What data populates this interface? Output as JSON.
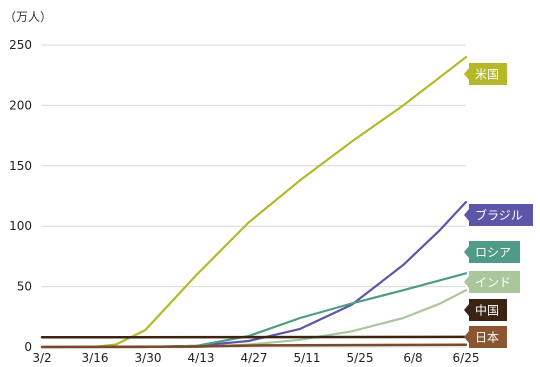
{
  "chart_data": {
    "type": "line",
    "ylabel": "（万人）",
    "ylim": [
      0,
      250
    ],
    "y_ticks": [
      0,
      50,
      100,
      150,
      200,
      250
    ],
    "x_ticks": [
      "3/2",
      "3/16",
      "3/30",
      "4/13",
      "4/27",
      "5/11",
      "5/25",
      "6/8",
      "6/25"
    ],
    "xlim_days": [
      0,
      115
    ],
    "grid": "horizontal",
    "legend": "direct labels at right end of each line",
    "series": [
      {
        "name": "米国",
        "color": "#b5b82a",
        "points": [
          [
            0,
            0
          ],
          [
            14,
            0.2
          ],
          [
            20,
            2
          ],
          [
            28,
            14
          ],
          [
            42,
            60
          ],
          [
            56,
            103
          ],
          [
            70,
            138
          ],
          [
            84,
            170
          ],
          [
            98,
            200
          ],
          [
            115,
            240
          ]
        ]
      },
      {
        "name": "ブラジル",
        "color": "#5b56a8",
        "points": [
          [
            0,
            0
          ],
          [
            28,
            0
          ],
          [
            42,
            1
          ],
          [
            56,
            5
          ],
          [
            70,
            15
          ],
          [
            84,
            35
          ],
          [
            98,
            68
          ],
          [
            108,
            97
          ],
          [
            115,
            120
          ]
        ]
      },
      {
        "name": "ロシア",
        "color": "#4f9b85",
        "points": [
          [
            0,
            0
          ],
          [
            28,
            0
          ],
          [
            42,
            1
          ],
          [
            56,
            9
          ],
          [
            70,
            24
          ],
          [
            84,
            36
          ],
          [
            98,
            47
          ],
          [
            115,
            61
          ]
        ]
      },
      {
        "name": "インド",
        "color": "#a9c79a",
        "points": [
          [
            0,
            0
          ],
          [
            42,
            0
          ],
          [
            56,
            2
          ],
          [
            70,
            6
          ],
          [
            84,
            13
          ],
          [
            98,
            24
          ],
          [
            108,
            36
          ],
          [
            115,
            47
          ]
        ]
      },
      {
        "name": "中国",
        "color": "#3b2414",
        "points": [
          [
            0,
            8
          ],
          [
            115,
            8.4
          ]
        ]
      },
      {
        "name": "日本",
        "color": "#7a4a28",
        "points": [
          [
            0,
            0
          ],
          [
            40,
            0.3
          ],
          [
            60,
            1.3
          ],
          [
            115,
            1.8
          ]
        ]
      }
    ]
  },
  "labels": [
    {
      "series": "米国",
      "text": "米国",
      "color": "#b5b82a"
    },
    {
      "series": "ブラジル",
      "text": "ブラジル",
      "color": "#5b56a8"
    },
    {
      "series": "ロシア",
      "text": "ロシア",
      "color": "#4f9b85"
    },
    {
      "series": "インド",
      "text": "インド",
      "color": "#a9c79a"
    },
    {
      "series": "中国",
      "text": "中国",
      "color": "#3b2414"
    },
    {
      "series": "日本",
      "text": "日本",
      "color": "#8a5530"
    }
  ]
}
